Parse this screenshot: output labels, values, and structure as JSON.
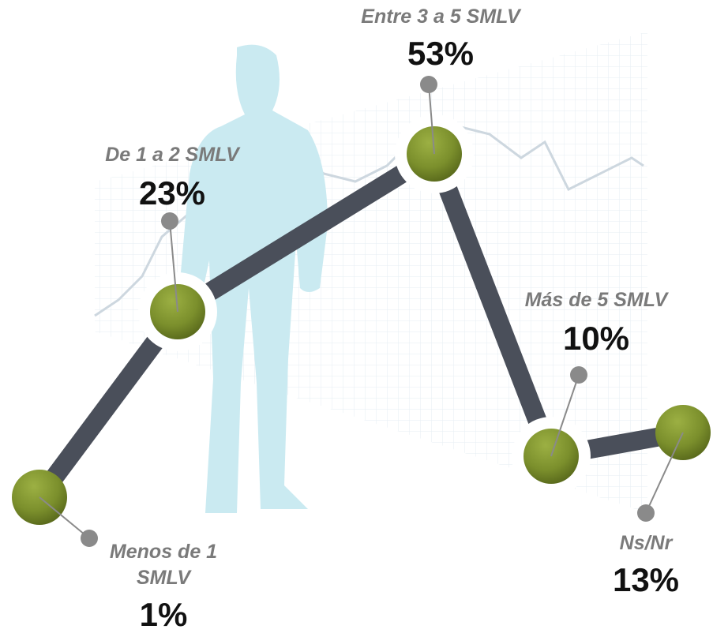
{
  "nodes": [
    {
      "label": "Menos de 1 SMLV",
      "value": "1%"
    },
    {
      "label": "De 1 a 2 SMLV",
      "value": "23%"
    },
    {
      "label": "Entre 3 a 5 SMLV",
      "value": "53%"
    },
    {
      "label": "Más de 5 SMLV",
      "value": "10%"
    },
    {
      "label": "Ns/Nr",
      "value": "13%"
    }
  ]
}
